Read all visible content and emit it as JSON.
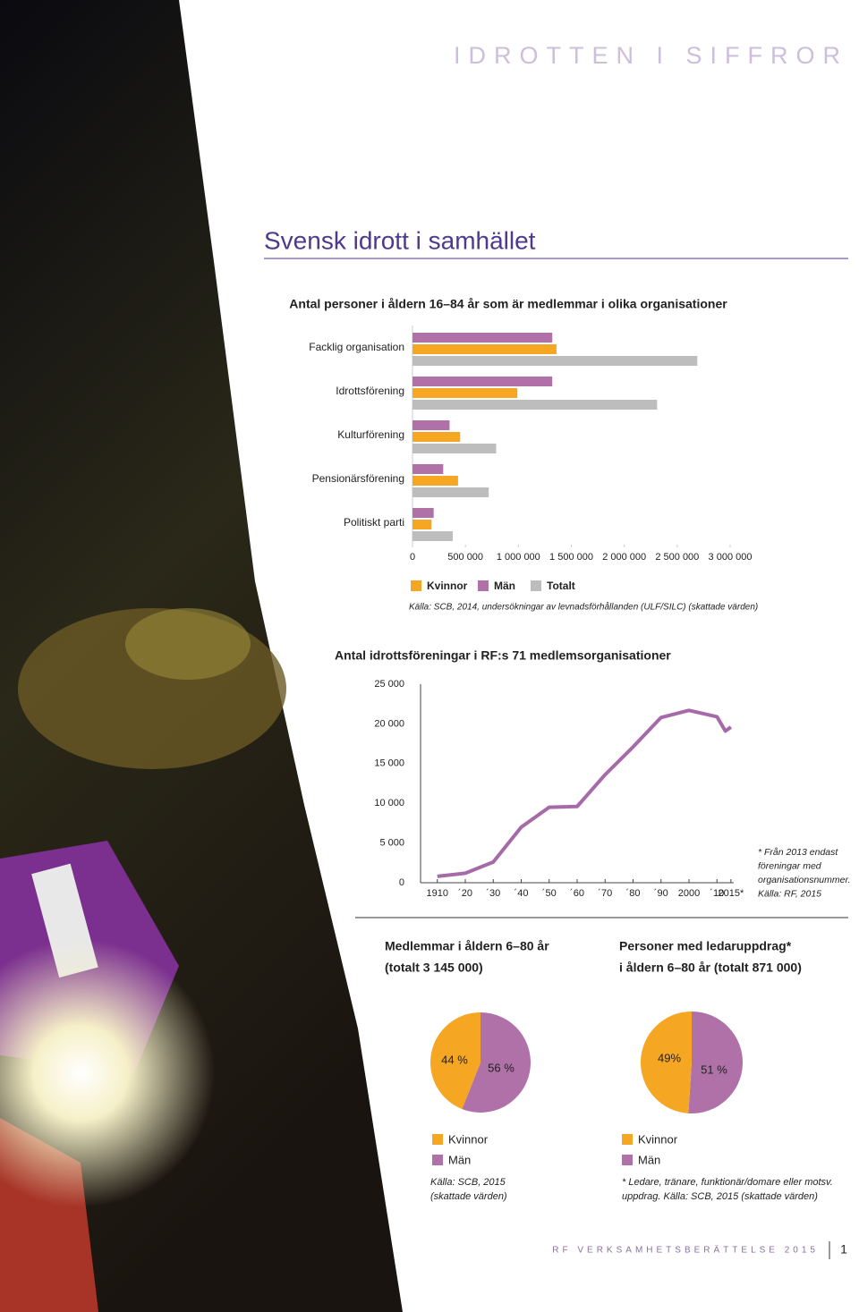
{
  "header": {
    "title": "IDROTTEN I SIFFROR"
  },
  "section_title": "Svensk idrott i samhället",
  "chart_data": [
    {
      "type": "bar",
      "orientation": "horizontal",
      "title": "Antal personer i åldern 16–84 år som är medlemmar i olika organisationer",
      "categories": [
        "Facklig organisation",
        "Idrottsförening",
        "Kulturförening",
        "Pensionärsförening",
        "Politiskt parti"
      ],
      "series": [
        {
          "name": "Kvinnor",
          "color": "#f5a623",
          "values": [
            1360000,
            990000,
            450000,
            430000,
            180000
          ]
        },
        {
          "name": "Män",
          "color": "#b070a8",
          "values": [
            1320000,
            1320000,
            350000,
            290000,
            200000
          ]
        },
        {
          "name": "Totalt",
          "color": "#bdbdbd",
          "values": [
            2690000,
            2310000,
            790000,
            720000,
            380000
          ]
        }
      ],
      "xlim": [
        0,
        3000000
      ],
      "xticks": [
        0,
        {
          "value": 500000,
          "label": "500 000"
        },
        {
          "value": 1000000,
          "label": "1 000 000"
        },
        {
          "value": 1500000,
          "label": "1 500 000"
        },
        {
          "value": 2000000,
          "label": "2 000 000"
        },
        {
          "value": 2500000,
          "label": "2 500 000"
        },
        {
          "value": 3000000,
          "label": "3 000 000"
        }
      ],
      "source": "Källa: SCB, 2014, undersökningar av levnadsförhållanden (ULF/SILC) (skattade värden)"
    },
    {
      "type": "line",
      "title": "Antal idrottsföreningar i RF:s 71 medlemsorganisationer",
      "x": [
        1910,
        1920,
        1930,
        1940,
        1950,
        1960,
        1970,
        1980,
        1990,
        2000,
        2010,
        2013,
        2015
      ],
      "values": [
        800,
        1200,
        2600,
        7000,
        9500,
        9600,
        13600,
        17100,
        20800,
        21700,
        20900,
        19100,
        19600
      ],
      "color": "#a66aa8",
      "xlim": [
        1904,
        2016
      ],
      "xticks": [
        1910,
        {
          "value": 1920,
          "label": "´20"
        },
        {
          "value": 1930,
          "label": "´30"
        },
        {
          "value": 1940,
          "label": "´40"
        },
        {
          "value": 1950,
          "label": "´50"
        },
        {
          "value": 1960,
          "label": "´60"
        },
        {
          "value": 1970,
          "label": "´70"
        },
        {
          "value": 1980,
          "label": "´80"
        },
        {
          "value": 1990,
          "label": "´90"
        },
        2000,
        {
          "value": 2010,
          "label": "´10"
        },
        {
          "value": 2015,
          "label": "2015*"
        }
      ],
      "ylim": [
        0,
        25000
      ],
      "yticks": [
        0,
        {
          "value": 5000,
          "label": "5 000"
        },
        {
          "value": 10000,
          "label": "10 000"
        },
        {
          "value": 15000,
          "label": "15 000"
        },
        {
          "value": 20000,
          "label": "20 000"
        },
        {
          "value": 25000,
          "label": "25 000"
        }
      ],
      "note": [
        "* Från 2013 endast",
        "föreningar med",
        "organisationsnummer.",
        "Källa: RF, 2015"
      ]
    },
    {
      "type": "pie",
      "title": "Medlemmar i åldern 6–80 år",
      "subtitle": "(totalt 3 145 000)",
      "categories": [
        "Kvinnor",
        "Män"
      ],
      "values": [
        44,
        56
      ],
      "value_labels": [
        "44 %",
        "56 %"
      ],
      "colors": [
        "#f5a623",
        "#b070a8"
      ],
      "source": [
        "Källa: SCB, 2015",
        "(skattade värden)"
      ]
    },
    {
      "type": "pie",
      "title": "Personer med ledaruppdrag*",
      "subtitle": "i åldern 6–80 år (totalt 871 000)",
      "categories": [
        "Kvinnor",
        "Män"
      ],
      "values": [
        49,
        51
      ],
      "value_labels": [
        "49%",
        "51 %"
      ],
      "colors": [
        "#f5a623",
        "#b070a8"
      ],
      "source": [
        "* Ledare, tränare, funktionär/domare eller motsv.",
        "uppdrag. Källa: SCB, 2015 (skattade värden)"
      ]
    }
  ],
  "footer": {
    "text": "RF VERKSAMHETSBERÄTTELSE 2015",
    "page": 1
  }
}
